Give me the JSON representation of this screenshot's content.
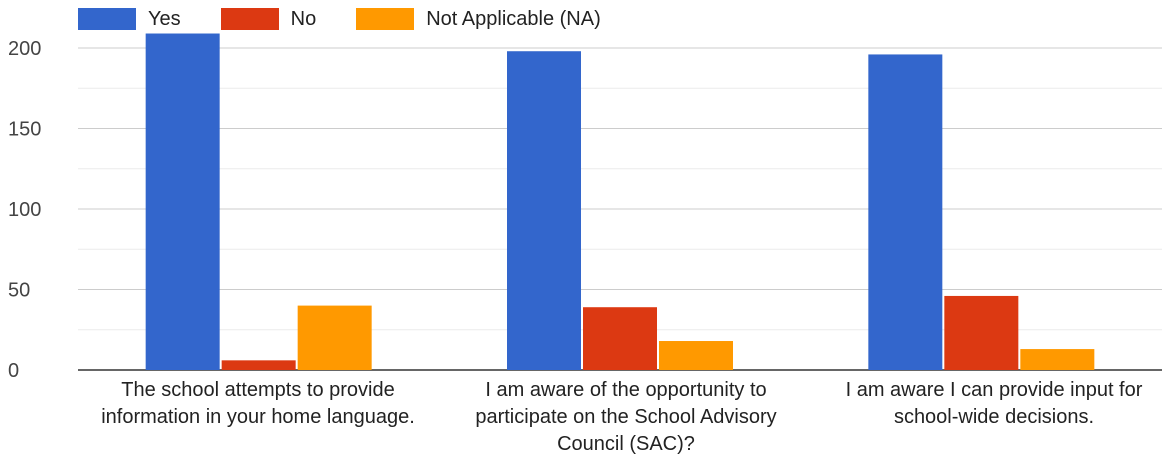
{
  "chart_data": {
    "type": "bar",
    "categories": [
      "The school attempts to provide information in your home language.",
      "I am aware of the opportunity to participate on the School Advisory Council (SAC)?",
      "I am aware I can provide input for school-wide decisions."
    ],
    "series": [
      {
        "name": "Yes",
        "color": "#3366cc",
        "values": [
          209,
          198,
          196
        ]
      },
      {
        "name": "No",
        "color": "#dc3912",
        "values": [
          6,
          39,
          46
        ]
      },
      {
        "name": "Not Applicable (NA)",
        "color": "#ff9900",
        "values": [
          40,
          18,
          13
        ]
      }
    ],
    "ylim": [
      0,
      200
    ],
    "yticks": [
      0,
      50,
      100,
      150,
      200
    ],
    "title": "",
    "xlabel": "",
    "ylabel": "",
    "grid": true,
    "legend_position": "top-left"
  }
}
